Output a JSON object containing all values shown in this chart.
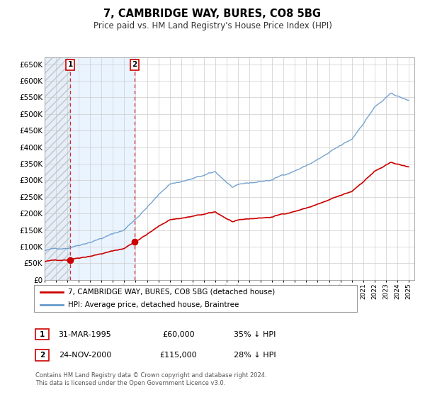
{
  "title": "7, CAMBRIDGE WAY, BURES, CO8 5BG",
  "subtitle": "Price paid vs. HM Land Registry's House Price Index (HPI)",
  "ylabel_ticks": [
    "£0",
    "£50K",
    "£100K",
    "£150K",
    "£200K",
    "£250K",
    "£300K",
    "£350K",
    "£400K",
    "£450K",
    "£500K",
    "£550K",
    "£600K",
    "£650K"
  ],
  "ytick_values": [
    0,
    50000,
    100000,
    150000,
    200000,
    250000,
    300000,
    350000,
    400000,
    450000,
    500000,
    550000,
    600000,
    650000
  ],
  "xmin": 1993.0,
  "xmax": 2025.5,
  "ymin": 0,
  "ymax": 670000,
  "sale1_date": 1995.25,
  "sale1_price": 60000,
  "sale2_date": 2000.9,
  "sale2_price": 115000,
  "legend_entry1": "7, CAMBRIDGE WAY, BURES, CO8 5BG (detached house)",
  "legend_entry2": "HPI: Average price, detached house, Braintree",
  "table_row1": [
    "1",
    "31-MAR-1995",
    "£60,000",
    "35% ↓ HPI"
  ],
  "table_row2": [
    "2",
    "24-NOV-2000",
    "£115,000",
    "28% ↓ HPI"
  ],
  "footnote1": "Contains HM Land Registry data © Crown copyright and database right 2024.",
  "footnote2": "This data is licensed under the Open Government Licence v3.0.",
  "red_color": "#cc0000",
  "blue_color": "#6699cc",
  "grid_color": "#cccccc",
  "plot_bg": "#ffffff"
}
